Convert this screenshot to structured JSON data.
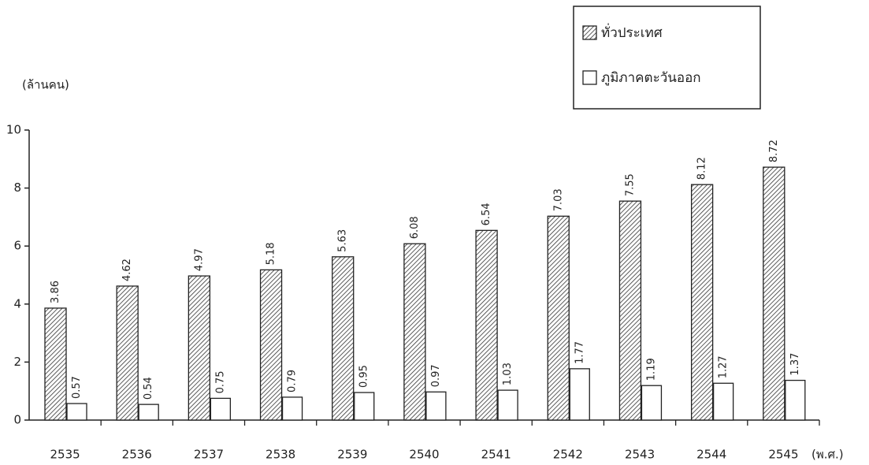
{
  "chart_data": {
    "type": "bar",
    "y_label": "(ล้านคน)",
    "x_label": "(พ.ศ.)",
    "categories": [
      "2535",
      "2536",
      "2537",
      "2538",
      "2539",
      "2540",
      "2541",
      "2542",
      "2543",
      "2544",
      "2545"
    ],
    "series": [
      {
        "name": "ทั่วประเทศ",
        "color": "#333333",
        "hatch": true,
        "values": [
          3.86,
          4.62,
          4.97,
          5.18,
          5.63,
          6.08,
          6.54,
          7.03,
          7.55,
          8.12,
          8.72
        ]
      },
      {
        "name": "ภูมิภาคตะวันออก",
        "color": "#ffffff",
        "hatch": false,
        "values": [
          0.57,
          0.54,
          0.75,
          0.79,
          0.95,
          0.97,
          1.03,
          1.77,
          1.19,
          1.27,
          1.37
        ]
      }
    ],
    "ylim": [
      0,
      10
    ],
    "yticks": [
      0,
      2,
      4,
      6,
      8,
      10
    ],
    "legend": "top-right",
    "grid": false
  }
}
